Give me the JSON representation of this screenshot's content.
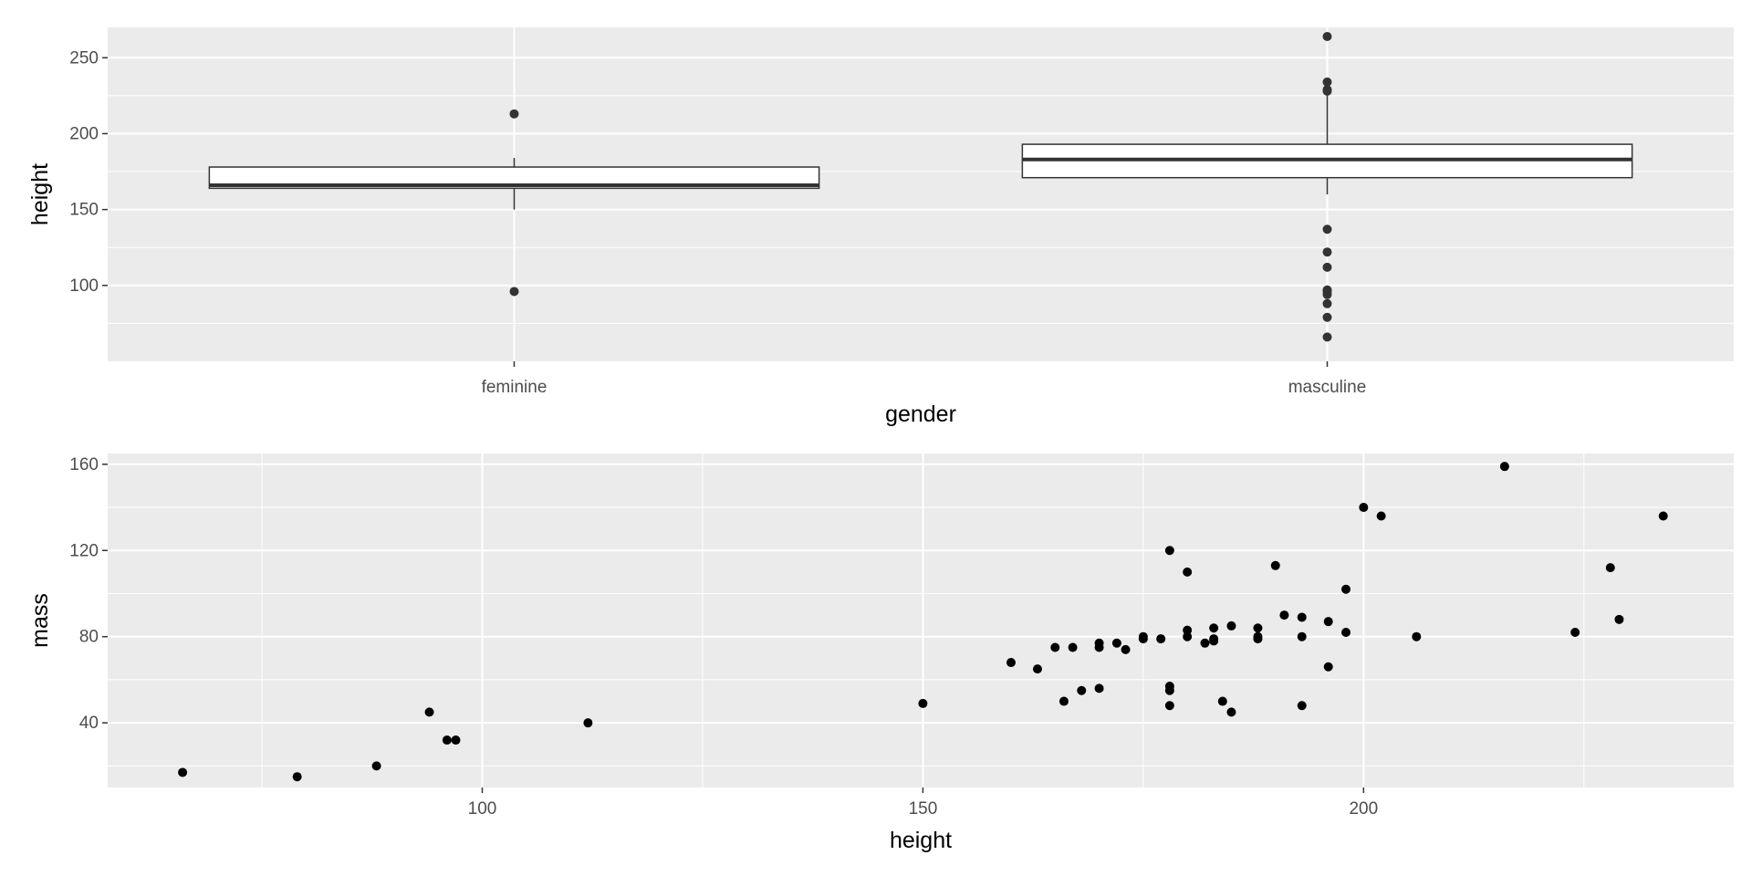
{
  "chart_data": [
    {
      "type": "boxplot",
      "xlabel": "gender",
      "ylabel": "height",
      "ylim": [
        50,
        270
      ],
      "yticks": [
        100,
        150,
        200,
        250
      ],
      "grid": true,
      "categories": [
        "feminine",
        "masculine"
      ],
      "boxes": [
        {
          "category": "feminine",
          "lower_whisker": 150,
          "q1": 164,
          "median": 166,
          "q3": 178,
          "upper_whisker": 184,
          "outliers": [
            213,
            96
          ]
        },
        {
          "category": "masculine",
          "lower_whisker": 160,
          "q1": 171,
          "median": 183,
          "q3": 193,
          "upper_whisker": 226,
          "outliers": [
            264,
            234,
            229,
            228,
            137,
            122,
            112,
            97,
            96,
            94,
            88,
            79,
            66
          ]
        }
      ]
    },
    {
      "type": "scatter",
      "xlabel": "height",
      "ylabel": "mass",
      "xlim": [
        57.5,
        242
      ],
      "ylim": [
        10,
        165
      ],
      "xticks": [
        100,
        150,
        200
      ],
      "yticks": [
        40,
        80,
        120,
        160
      ],
      "grid": true,
      "points": [
        [
          66,
          17
        ],
        [
          79,
          15
        ],
        [
          88,
          20
        ],
        [
          94,
          45
        ],
        [
          96,
          32
        ],
        [
          97,
          32
        ],
        [
          112,
          40
        ],
        [
          150,
          49
        ],
        [
          160,
          68
        ],
        [
          163,
          65
        ],
        [
          165,
          75
        ],
        [
          166,
          50
        ],
        [
          167,
          75
        ],
        [
          168,
          55
        ],
        [
          170,
          77
        ],
        [
          170,
          75
        ],
        [
          170,
          56
        ],
        [
          172,
          77
        ],
        [
          173,
          74
        ],
        [
          175,
          79
        ],
        [
          175,
          80
        ],
        [
          177,
          79
        ],
        [
          178,
          120
        ],
        [
          178,
          57
        ],
        [
          178,
          55
        ],
        [
          178,
          48
        ],
        [
          180,
          110
        ],
        [
          180,
          83
        ],
        [
          180,
          80
        ],
        [
          182,
          77
        ],
        [
          183,
          84
        ],
        [
          183,
          79
        ],
        [
          183,
          78
        ],
        [
          184,
          50
        ],
        [
          185,
          85
        ],
        [
          185,
          45
        ],
        [
          188,
          84
        ],
        [
          188,
          80
        ],
        [
          188,
          79
        ],
        [
          190,
          113
        ],
        [
          191,
          90
        ],
        [
          193,
          89
        ],
        [
          193,
          80
        ],
        [
          193,
          48
        ],
        [
          196,
          87
        ],
        [
          196,
          66
        ],
        [
          198,
          102
        ],
        [
          198,
          82
        ],
        [
          200,
          140
        ],
        [
          202,
          136
        ],
        [
          206,
          80
        ],
        [
          216,
          159
        ],
        [
          224,
          82
        ],
        [
          228,
          112
        ],
        [
          229,
          88
        ],
        [
          234,
          136
        ]
      ]
    }
  ]
}
